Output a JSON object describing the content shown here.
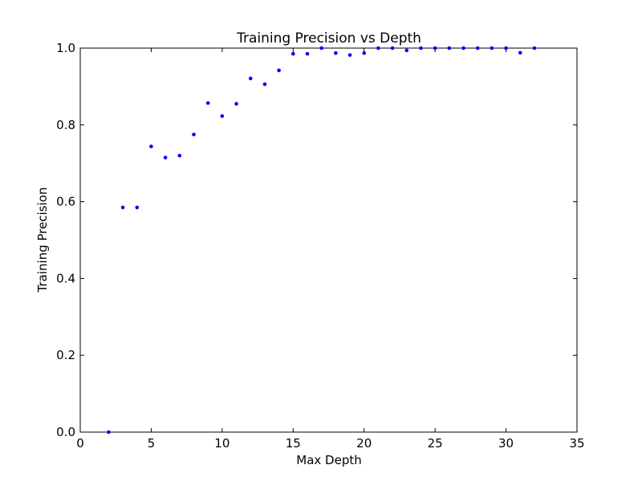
{
  "chart_data": {
    "type": "scatter",
    "title": "Training Precision vs Depth",
    "xlabel": "Max Depth",
    "ylabel": "Training Precision",
    "xlim": [
      0,
      35
    ],
    "ylim": [
      0.0,
      1.0
    ],
    "x_ticks": [
      0,
      5,
      10,
      15,
      20,
      25,
      30,
      35
    ],
    "y_ticks": [
      0.0,
      0.2,
      0.4,
      0.6,
      0.8,
      1.0
    ],
    "x_tick_labels": [
      "0",
      "5",
      "10",
      "15",
      "20",
      "25",
      "30",
      "35"
    ],
    "y_tick_labels": [
      "0.0",
      "0.2",
      "0.4",
      "0.6",
      "0.8",
      "1.0"
    ],
    "grid": false,
    "marker_color": "#0000ff",
    "series": [
      {
        "x": [
          2,
          3,
          4,
          5,
          6,
          7,
          8,
          9,
          10,
          11,
          12,
          13,
          14,
          15,
          16,
          17,
          18,
          19,
          20,
          21,
          22,
          23,
          24,
          25,
          26,
          27,
          28,
          29,
          30,
          31,
          32
        ],
        "y": [
          0.0,
          0.585,
          0.585,
          0.744,
          0.715,
          0.72,
          0.775,
          0.857,
          0.823,
          0.855,
          0.921,
          0.906,
          0.942,
          0.985,
          0.985,
          1.0,
          0.987,
          0.982,
          0.987,
          1.0,
          1.0,
          0.994,
          1.0,
          1.0,
          1.0,
          1.0,
          1.0,
          1.0,
          1.0,
          0.988,
          1.0
        ]
      }
    ]
  }
}
